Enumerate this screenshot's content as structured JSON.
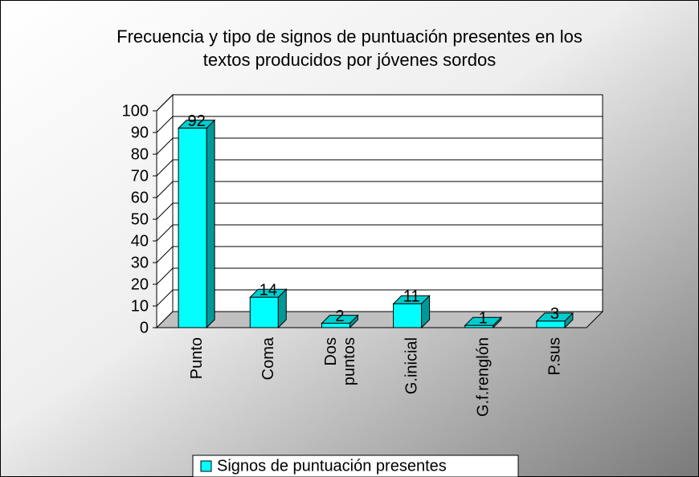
{
  "chart_data": {
    "type": "bar3d",
    "title": "Frecuencia y tipo de signos de puntuación presentes en los textos producidos por jóvenes sordos",
    "categories": [
      "Punto",
      "Coma",
      "Dos puntos",
      "G.inicial",
      "G.f.renglón",
      "P.sus"
    ],
    "series": [
      {
        "name": "Signos de puntuación presentes",
        "color": "#00ffff",
        "values": [
          92,
          14,
          2,
          11,
          1,
          3
        ]
      }
    ],
    "ylim": [
      0,
      100
    ],
    "yticks": [
      0,
      10,
      20,
      30,
      40,
      50,
      60,
      70,
      80,
      90,
      100
    ],
    "grid": true,
    "legend": "bottom"
  }
}
